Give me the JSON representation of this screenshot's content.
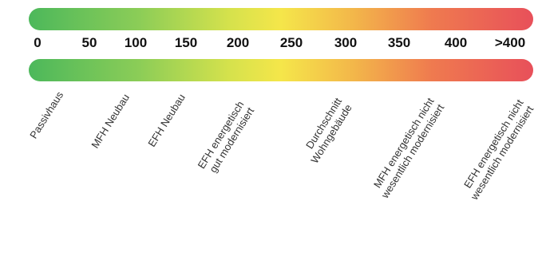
{
  "ticks": [
    "0",
    "50",
    "100",
    "150",
    "200",
    "250",
    "300",
    "350",
    "400",
    ">400"
  ],
  "labels": [
    {
      "line1": "Passivhaus",
      "line2": ""
    },
    {
      "line1": "MFH Neubau",
      "line2": ""
    },
    {
      "line1": "EFH Neubau",
      "line2": ""
    },
    {
      "line1": "EFH energetisch",
      "line2": "gut modernisiert"
    },
    {
      "line1": "Durchschnitt",
      "line2": "Wohngebäude"
    },
    {
      "line1": "MFH energetisch nicht",
      "line2": "wesentlich modernisiert"
    },
    {
      "line1": "EFH energetisch nicht",
      "line2": "wesentlich modernisiert"
    }
  ],
  "colors": {
    "start": "#4cb85b",
    "mid": "#f5e64a",
    "end": "#e8505a"
  }
}
